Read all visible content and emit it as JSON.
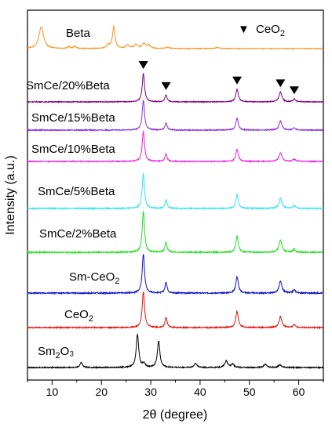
{
  "chart_data": {
    "type": "line",
    "xlabel": "2θ (degree)",
    "ylabel": "Intensity (a.u.)",
    "xlim": [
      5,
      65
    ],
    "xticks": [
      10,
      20,
      30,
      40,
      50,
      60
    ],
    "yticks_shown": false,
    "legend": {
      "marker": "▼",
      "label": "CeO",
      "label_sub": "2"
    },
    "ceo2_peaks": [
      28.5,
      33.1,
      47.5,
      56.3,
      59.1
    ],
    "series": [
      {
        "name": "Beta",
        "label_main": "Beta",
        "label_sub": "",
        "label_tail": "",
        "color": "#f7931e",
        "amp": 28,
        "peaks": [
          [
            7.8,
            1.0,
            0.55
          ],
          [
            13.4,
            0.08,
            0.3
          ],
          [
            14.6,
            0.1,
            0.3
          ],
          [
            21.4,
            0.15,
            0.4
          ],
          [
            22.5,
            1.0,
            0.3
          ],
          [
            25.3,
            0.15,
            0.4
          ],
          [
            27.0,
            0.18,
            0.4
          ],
          [
            28.6,
            0.22,
            0.4
          ],
          [
            29.6,
            0.15,
            0.4
          ],
          [
            33.4,
            0.06,
            0.4
          ],
          [
            43.5,
            0.05,
            0.5
          ]
        ],
        "show_markers": false
      },
      {
        "name": "SmCe/20%Beta",
        "label_main": "SmCe/20%Beta",
        "label_sub": "",
        "label_tail": "",
        "color": "#800080",
        "amp": 36,
        "peaks": [
          [
            28.5,
            1.0,
            0.28
          ],
          [
            33.1,
            0.25,
            0.25
          ],
          [
            47.5,
            0.45,
            0.3
          ],
          [
            56.3,
            0.35,
            0.35
          ],
          [
            59.1,
            0.1,
            0.3
          ]
        ],
        "show_markers": true
      },
      {
        "name": "SmCe/15%Beta",
        "label_main": "SmCe/15%Beta",
        "label_sub": "",
        "label_tail": "",
        "color": "#8a2be2",
        "amp": 38,
        "peaks": [
          [
            28.5,
            1.0,
            0.28
          ],
          [
            33.1,
            0.25,
            0.25
          ],
          [
            47.5,
            0.4,
            0.3
          ],
          [
            56.3,
            0.3,
            0.35
          ],
          [
            59.1,
            0.08,
            0.3
          ]
        ],
        "show_markers": false
      },
      {
        "name": "SmCe/10%Beta",
        "label_main": "SmCe/10%Beta",
        "label_sub": "",
        "label_tail": "",
        "color": "#ee1ee5",
        "amp": 38,
        "peaks": [
          [
            28.5,
            1.0,
            0.28
          ],
          [
            33.1,
            0.25,
            0.25
          ],
          [
            47.5,
            0.4,
            0.3
          ],
          [
            56.3,
            0.3,
            0.35
          ],
          [
            59.1,
            0.08,
            0.3
          ]
        ],
        "show_markers": false
      },
      {
        "name": "SmCe/5%Beta",
        "label_main": "SmCe/5%Beta",
        "label_sub": "",
        "label_tail": "",
        "color": "#2ee6f2",
        "amp": 44,
        "peaks": [
          [
            28.5,
            1.0,
            0.28
          ],
          [
            33.1,
            0.25,
            0.25
          ],
          [
            47.5,
            0.4,
            0.3
          ],
          [
            56.3,
            0.3,
            0.35
          ],
          [
            59.1,
            0.08,
            0.3
          ]
        ],
        "show_markers": false
      },
      {
        "name": "SmCe/2%Beta",
        "label_main": "SmCe/2%Beta",
        "label_sub": "",
        "label_tail": "",
        "color": "#20e020",
        "amp": 52,
        "peaks": [
          [
            28.5,
            1.0,
            0.28
          ],
          [
            33.1,
            0.25,
            0.25
          ],
          [
            47.5,
            0.4,
            0.3
          ],
          [
            56.3,
            0.3,
            0.35
          ],
          [
            59.1,
            0.08,
            0.3
          ]
        ],
        "show_markers": false
      },
      {
        "name": "Sm-CeO2",
        "label_main": "Sm-CeO",
        "label_sub": "2",
        "label_tail": "",
        "color": "#1010c8",
        "amp": 50,
        "peaks": [
          [
            28.5,
            1.0,
            0.28
          ],
          [
            33.1,
            0.28,
            0.25
          ],
          [
            47.5,
            0.42,
            0.3
          ],
          [
            56.3,
            0.3,
            0.35
          ],
          [
            59.1,
            0.08,
            0.3
          ]
        ],
        "show_markers": false
      },
      {
        "name": "CeO2",
        "label_main": "CeO",
        "label_sub": "2",
        "label_tail": "",
        "color": "#e81010",
        "amp": 46,
        "peaks": [
          [
            28.5,
            1.0,
            0.28
          ],
          [
            33.1,
            0.28,
            0.25
          ],
          [
            47.5,
            0.45,
            0.3
          ],
          [
            56.3,
            0.3,
            0.35
          ],
          [
            59.1,
            0.08,
            0.3
          ]
        ],
        "show_markers": false
      },
      {
        "name": "Sm2O3",
        "label_main": "Sm",
        "label_sub": "2",
        "label_tail": "O₃",
        "color": "#000000",
        "amp": 42,
        "peaks": [
          [
            15.9,
            0.15,
            0.3
          ],
          [
            27.3,
            1.0,
            0.3
          ],
          [
            28.6,
            0.12,
            0.3
          ],
          [
            31.6,
            0.8,
            0.3
          ],
          [
            39.1,
            0.12,
            0.35
          ],
          [
            45.3,
            0.2,
            0.35
          ],
          [
            46.6,
            0.1,
            0.35
          ],
          [
            53.2,
            0.1,
            0.35
          ],
          [
            56.2,
            0.08,
            0.35
          ]
        ],
        "show_markers": false
      }
    ]
  }
}
